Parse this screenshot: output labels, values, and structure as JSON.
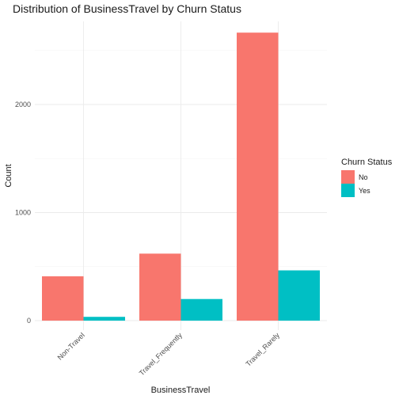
{
  "chart_data": {
    "type": "bar",
    "title": "Distribution of BusinessTravel by Churn Status",
    "xlabel": "BusinessTravel",
    "ylabel": "Count",
    "categories": [
      "Non-Travel",
      "Travel_Frequently",
      "Travel_Rarely"
    ],
    "series": [
      {
        "name": "No",
        "values": [
          410,
          620,
          2665
        ]
      },
      {
        "name": "Yes",
        "values": [
          35,
          200,
          465
        ]
      }
    ],
    "ylim": [
      0,
      2800
    ],
    "yticks": [
      0,
      1000,
      2000
    ],
    "grid": true,
    "legend": {
      "title": "Churn Status",
      "placement": "right"
    },
    "colors": {
      "No": "#F8766D",
      "Yes": "#00BFC4"
    }
  }
}
